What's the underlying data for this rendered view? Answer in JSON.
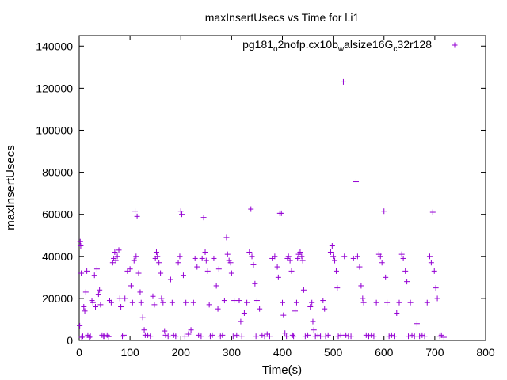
{
  "chart_data": {
    "type": "scatter",
    "title": "maxInsertUsecs vs Time for l.i1",
    "xlabel": "Time(s)",
    "ylabel": "maxInsertUsecs",
    "xlim": [
      0,
      800
    ],
    "ylim": [
      0,
      145000
    ],
    "x_ticks": [
      "0",
      "100",
      "200",
      "300",
      "400",
      "500",
      "600",
      "700",
      "800"
    ],
    "y_ticks": [
      "0",
      "20000",
      "40000",
      "60000",
      "80000",
      "100000",
      "120000",
      "140000"
    ],
    "grid": false,
    "legend_position": "top-right",
    "marker_color": "#9400d3",
    "series": [
      {
        "name_parts": [
          {
            "text": "pg181",
            "sub": false
          },
          {
            "text": "o",
            "sub": true
          },
          {
            "text": "2nofp.cx10b",
            "sub": false
          },
          {
            "text": "w",
            "sub": true
          },
          {
            "text": "alsize16G",
            "sub": false
          },
          {
            "text": "c",
            "sub": true
          },
          {
            "text": "32r128",
            "sub": false
          }
        ],
        "points": [
          [
            1,
            7000
          ],
          [
            2,
            47000
          ],
          [
            3,
            45000
          ],
          [
            4,
            32000
          ],
          [
            5,
            1500
          ],
          [
            7,
            2000
          ],
          [
            9,
            16000
          ],
          [
            11,
            14000
          ],
          [
            13,
            23000
          ],
          [
            15,
            33000
          ],
          [
            17,
            2500
          ],
          [
            20,
            1500
          ],
          [
            22,
            2000
          ],
          [
            25,
            19000
          ],
          [
            27,
            18000
          ],
          [
            30,
            31000
          ],
          [
            32,
            16000
          ],
          [
            35,
            34000
          ],
          [
            38,
            22000
          ],
          [
            40,
            24000
          ],
          [
            42,
            17000
          ],
          [
            45,
            2500
          ],
          [
            48,
            2000
          ],
          [
            50,
            2000
          ],
          [
            55,
            2500
          ],
          [
            58,
            1800
          ],
          [
            60,
            19000
          ],
          [
            63,
            18000
          ],
          [
            66,
            37000
          ],
          [
            68,
            39000
          ],
          [
            70,
            42000
          ],
          [
            72,
            38000
          ],
          [
            75,
            40000
          ],
          [
            78,
            43000
          ],
          [
            80,
            20000
          ],
          [
            82,
            16000
          ],
          [
            85,
            2000
          ],
          [
            88,
            2500
          ],
          [
            90,
            20000
          ],
          [
            95,
            33000
          ],
          [
            100,
            34000
          ],
          [
            102,
            26000
          ],
          [
            105,
            18000
          ],
          [
            108,
            38000
          ],
          [
            110,
            61500
          ],
          [
            112,
            40000
          ],
          [
            114,
            59000
          ],
          [
            117,
            32000
          ],
          [
            120,
            23000
          ],
          [
            122,
            18000
          ],
          [
            125,
            11000
          ],
          [
            128,
            5000
          ],
          [
            130,
            2500
          ],
          [
            135,
            2500
          ],
          [
            140,
            2000
          ],
          [
            145,
            21000
          ],
          [
            148,
            17000
          ],
          [
            150,
            39000
          ],
          [
            152,
            42000
          ],
          [
            154,
            40000
          ],
          [
            157,
            37000
          ],
          [
            160,
            32000
          ],
          [
            162,
            20000
          ],
          [
            165,
            18000
          ],
          [
            168,
            4500
          ],
          [
            170,
            2500
          ],
          [
            175,
            2000
          ],
          [
            180,
            29000
          ],
          [
            183,
            18000
          ],
          [
            186,
            2500
          ],
          [
            190,
            2000
          ],
          [
            195,
            37000
          ],
          [
            198,
            40000
          ],
          [
            200,
            61500
          ],
          [
            202,
            60000
          ],
          [
            205,
            31000
          ],
          [
            208,
            2000
          ],
          [
            210,
            18000
          ],
          [
            215,
            3000
          ],
          [
            220,
            5000
          ],
          [
            225,
            18000
          ],
          [
            228,
            39000
          ],
          [
            232,
            35000
          ],
          [
            235,
            2500
          ],
          [
            240,
            2000
          ],
          [
            242,
            39000
          ],
          [
            245,
            58500
          ],
          [
            248,
            42000
          ],
          [
            250,
            38000
          ],
          [
            253,
            33000
          ],
          [
            256,
            17000
          ],
          [
            258,
            2000
          ],
          [
            262,
            2500
          ],
          [
            265,
            39000
          ],
          [
            270,
            26000
          ],
          [
            273,
            15000
          ],
          [
            275,
            34000
          ],
          [
            278,
            2000
          ],
          [
            282,
            2500
          ],
          [
            286,
            19000
          ],
          [
            290,
            49000
          ],
          [
            292,
            41000
          ],
          [
            295,
            38000
          ],
          [
            298,
            37000
          ],
          [
            300,
            32000
          ],
          [
            303,
            2000
          ],
          [
            305,
            19000
          ],
          [
            310,
            2500
          ],
          [
            315,
            19000
          ],
          [
            318,
            9000
          ],
          [
            320,
            2000
          ],
          [
            325,
            13000
          ],
          [
            330,
            18000
          ],
          [
            335,
            42000
          ],
          [
            338,
            62500
          ],
          [
            340,
            40000
          ],
          [
            343,
            36000
          ],
          [
            346,
            27000
          ],
          [
            348,
            2000
          ],
          [
            350,
            19000
          ],
          [
            355,
            15000
          ],
          [
            360,
            2500
          ],
          [
            365,
            2000
          ],
          [
            370,
            3000
          ],
          [
            375,
            2000
          ],
          [
            380,
            39000
          ],
          [
            385,
            40000
          ],
          [
            390,
            35000
          ],
          [
            392,
            30000
          ],
          [
            395,
            60500
          ],
          [
            398,
            60500
          ],
          [
            400,
            18000
          ],
          [
            402,
            12000
          ],
          [
            405,
            3500
          ],
          [
            408,
            2000
          ],
          [
            410,
            39000
          ],
          [
            412,
            40000
          ],
          [
            415,
            38000
          ],
          [
            418,
            33000
          ],
          [
            420,
            2500
          ],
          [
            422,
            2000
          ],
          [
            425,
            14000
          ],
          [
            428,
            18000
          ],
          [
            430,
            39000
          ],
          [
            432,
            41000
          ],
          [
            435,
            42000
          ],
          [
            438,
            40000
          ],
          [
            440,
            38000
          ],
          [
            442,
            24000
          ],
          [
            445,
            2000
          ],
          [
            450,
            2500
          ],
          [
            455,
            16000
          ],
          [
            458,
            18000
          ],
          [
            460,
            9000
          ],
          [
            462,
            5000
          ],
          [
            465,
            2000
          ],
          [
            470,
            2500
          ],
          [
            475,
            2000
          ],
          [
            480,
            19000
          ],
          [
            483,
            15000
          ],
          [
            485,
            2000
          ],
          [
            490,
            2500
          ],
          [
            495,
            42000
          ],
          [
            498,
            45000
          ],
          [
            500,
            40000
          ],
          [
            503,
            38000
          ],
          [
            506,
            33000
          ],
          [
            508,
            25000
          ],
          [
            510,
            2000
          ],
          [
            515,
            2500
          ],
          [
            520,
            123000
          ],
          [
            522,
            40000
          ],
          [
            525,
            2500
          ],
          [
            530,
            2000
          ],
          [
            535,
            2000
          ],
          [
            540,
            39000
          ],
          [
            545,
            75500
          ],
          [
            548,
            40000
          ],
          [
            552,
            35000
          ],
          [
            555,
            26000
          ],
          [
            558,
            20000
          ],
          [
            560,
            18000
          ],
          [
            565,
            2500
          ],
          [
            570,
            2000
          ],
          [
            575,
            2500
          ],
          [
            580,
            2000
          ],
          [
            585,
            18000
          ],
          [
            590,
            41000
          ],
          [
            593,
            40000
          ],
          [
            596,
            37000
          ],
          [
            600,
            61500
          ],
          [
            603,
            30000
          ],
          [
            606,
            18000
          ],
          [
            610,
            2000
          ],
          [
            615,
            2500
          ],
          [
            620,
            2000
          ],
          [
            625,
            13000
          ],
          [
            630,
            18000
          ],
          [
            635,
            41000
          ],
          [
            638,
            39000
          ],
          [
            642,
            33000
          ],
          [
            645,
            28000
          ],
          [
            648,
            2000
          ],
          [
            652,
            18000
          ],
          [
            655,
            2500
          ],
          [
            660,
            2000
          ],
          [
            665,
            8000
          ],
          [
            670,
            2000
          ],
          [
            675,
            2500
          ],
          [
            680,
            2000
          ],
          [
            685,
            18000
          ],
          [
            690,
            40000
          ],
          [
            693,
            37000
          ],
          [
            696,
            61000
          ],
          [
            699,
            33000
          ],
          [
            702,
            25000
          ],
          [
            705,
            20000
          ],
          [
            710,
            2000
          ],
          [
            713,
            2500
          ],
          [
            718,
            1500
          ]
        ]
      }
    ]
  }
}
